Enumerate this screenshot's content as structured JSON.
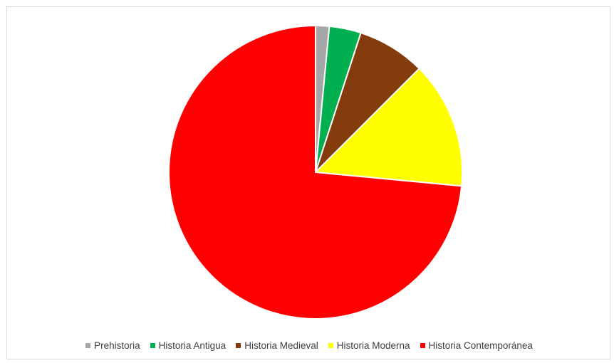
{
  "chart_data": {
    "type": "pie",
    "title": "",
    "categories": [
      "Prehistoria",
      "Historia Antigua",
      "Historia Medieval",
      "Historia Moderna",
      "Historia Contemporánea"
    ],
    "values": [
      1.5,
      3.5,
      7.5,
      14,
      73.5
    ],
    "unit": "%",
    "colors": [
      "#a6a6a6",
      "#00b050",
      "#843c0c",
      "#ffff00",
      "#ff0000"
    ],
    "legend_position": "bottom",
    "start_angle_deg": 0,
    "direction": "clockwise"
  },
  "legend": {
    "items": [
      {
        "label": "Prehistoria",
        "color": "#a6a6a6"
      },
      {
        "label": "Historia Antigua",
        "color": "#00b050"
      },
      {
        "label": "Historia Medieval",
        "color": "#843c0c"
      },
      {
        "label": "Historia Moderna",
        "color": "#ffff00"
      },
      {
        "label": "Historia Contemporánea",
        "color": "#ff0000"
      }
    ]
  }
}
